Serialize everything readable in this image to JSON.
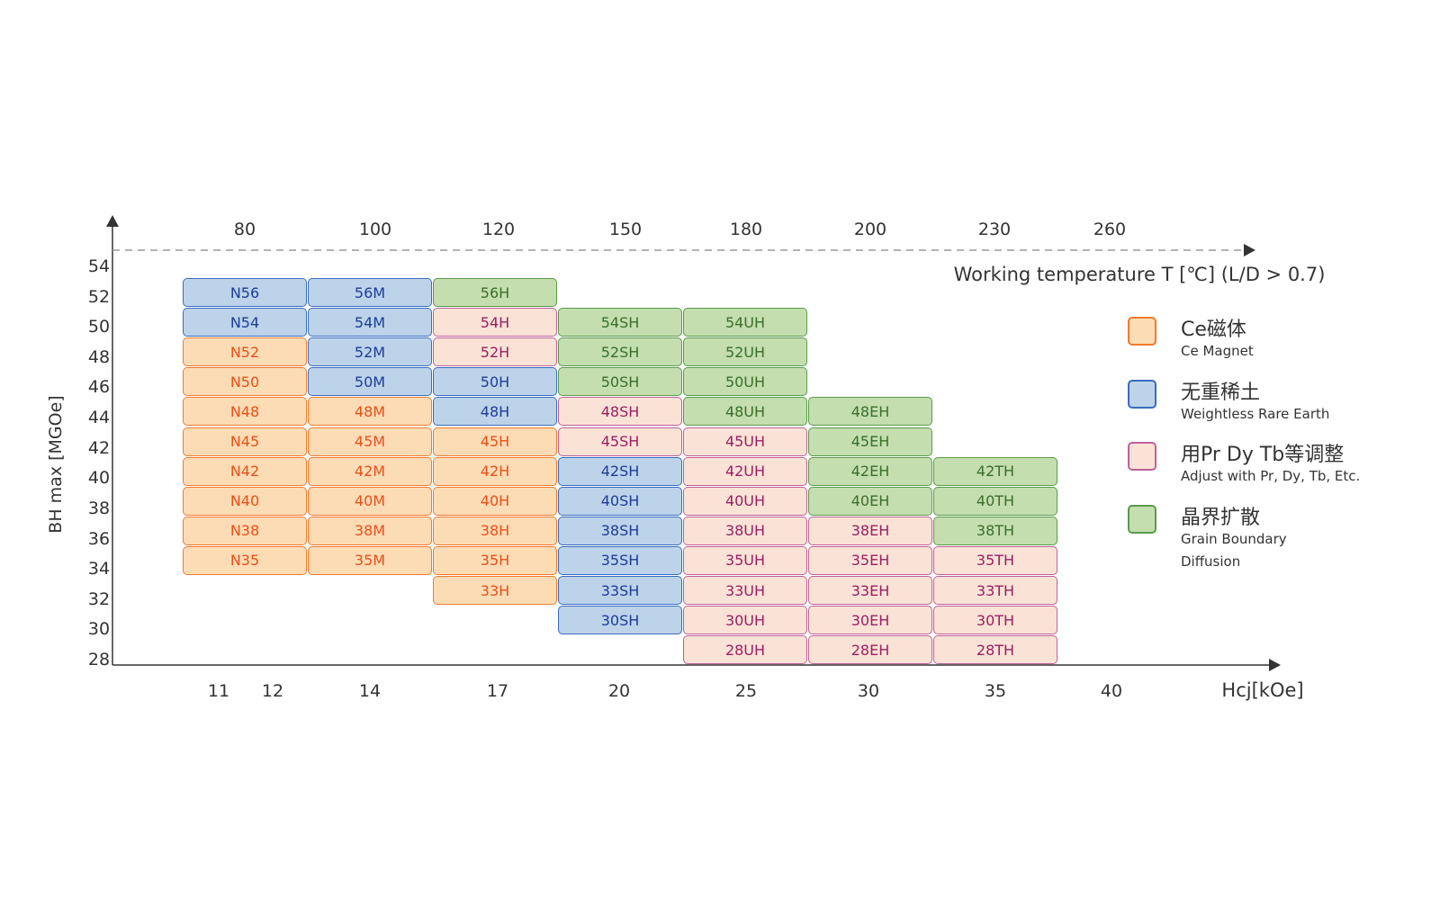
{
  "chart_data": {
    "type": "table",
    "ylabel": "BH max [MGOe]",
    "xlabel": "Hcj[kOe]",
    "top_axis_label": "Working temperature T [℃] (L/D > 0.7)",
    "y_ticks": [
      "54",
      "52",
      "50",
      "48",
      "46",
      "44",
      "42",
      "40",
      "38",
      "36",
      "34",
      "32",
      "30",
      "28"
    ],
    "x_ticks": [
      "11",
      "12",
      "14",
      "17",
      "20",
      "25",
      "30",
      "35",
      "40"
    ],
    "top_ticks": [
      "80",
      "100",
      "120",
      "150",
      "180",
      "200",
      "230",
      "260"
    ],
    "grid": false,
    "legend_placement": "right",
    "categories": {
      "ce": {
        "title": "Ce磁体",
        "subtitle": "Ce Magnet",
        "fill": "#fbdcb5",
        "border": "#f07a30",
        "text": "#e8501a"
      },
      "weightless": {
        "title": "无重稀土",
        "subtitle": "Weightless Rare Earth",
        "fill": "#bcd3ea",
        "border": "#3a6cc0",
        "text": "#1e3c96"
      },
      "adjust": {
        "title": "用Pr Dy Tb等调整",
        "subtitle": "Adjust with Pr, Dy, Tb, Etc.",
        "fill": "#fae3d6",
        "border": "#c0609a",
        "text": "#9a1e64"
      },
      "gbd": {
        "title": "晶界扩散",
        "subtitle": "Grain Boundary",
        "subtitle2": "Diffusion",
        "fill": "#c4deb0",
        "border": "#5a9a4a",
        "text": "#3a6e2a"
      }
    },
    "legend_order": [
      "ce",
      "weightless",
      "adjust",
      "gbd"
    ],
    "row_grades": [
      "56",
      "54",
      "52",
      "50",
      "48",
      "45",
      "42",
      "40",
      "38",
      "35",
      "33",
      "30",
      "28"
    ],
    "columns": [
      {
        "suffix": "N",
        "cells": [
          [
            "N56",
            "weightless"
          ],
          [
            "N54",
            "weightless"
          ],
          [
            "N52",
            "ce"
          ],
          [
            "N50",
            "ce"
          ],
          [
            "N48",
            "ce"
          ],
          [
            "N45",
            "ce"
          ],
          [
            "N42",
            "ce"
          ],
          [
            "N40",
            "ce"
          ],
          [
            "N38",
            "ce"
          ],
          [
            "N35",
            "ce"
          ]
        ]
      },
      {
        "suffix": "M",
        "cells": [
          [
            "56M",
            "weightless"
          ],
          [
            "54M",
            "weightless"
          ],
          [
            "52M",
            "weightless"
          ],
          [
            "50M",
            "weightless"
          ],
          [
            "48M",
            "ce"
          ],
          [
            "45M",
            "ce"
          ],
          [
            "42M",
            "ce"
          ],
          [
            "40M",
            "ce"
          ],
          [
            "38M",
            "ce"
          ],
          [
            "35M",
            "ce"
          ]
        ]
      },
      {
        "suffix": "H",
        "cells": [
          [
            "56H",
            "gbd"
          ],
          [
            "54H",
            "adjust"
          ],
          [
            "52H",
            "adjust"
          ],
          [
            "50H",
            "weightless"
          ],
          [
            "48H",
            "weightless"
          ],
          [
            "45H",
            "ce"
          ],
          [
            "42H",
            "ce"
          ],
          [
            "40H",
            "ce"
          ],
          [
            "38H",
            "ce"
          ],
          [
            "35H",
            "ce"
          ],
          [
            "33H",
            "ce"
          ]
        ]
      },
      {
        "suffix": "SH",
        "cells": [
          [
            "54SH",
            "gbd"
          ],
          [
            "52SH",
            "gbd"
          ],
          [
            "50SH",
            "gbd"
          ],
          [
            "48SH",
            "adjust"
          ],
          [
            "45SH",
            "adjust"
          ],
          [
            "42SH",
            "weightless"
          ],
          [
            "40SH",
            "weightless"
          ],
          [
            "38SH",
            "weightless"
          ],
          [
            "35SH",
            "weightless"
          ],
          [
            "33SH",
            "weightless"
          ],
          [
            "30SH",
            "weightless"
          ]
        ]
      },
      {
        "suffix": "UH",
        "cells": [
          [
            "54UH",
            "gbd"
          ],
          [
            "52UH",
            "gbd"
          ],
          [
            "50UH",
            "gbd"
          ],
          [
            "48UH",
            "gbd"
          ],
          [
            "45UH",
            "adjust"
          ],
          [
            "42UH",
            "adjust"
          ],
          [
            "40UH",
            "adjust"
          ],
          [
            "38UH",
            "adjust"
          ],
          [
            "35UH",
            "adjust"
          ],
          [
            "33UH",
            "adjust"
          ],
          [
            "30UH",
            "adjust"
          ],
          [
            "28UH",
            "adjust"
          ]
        ]
      },
      {
        "suffix": "EH",
        "cells": [
          [
            "48EH",
            "gbd"
          ],
          [
            "45EH",
            "gbd"
          ],
          [
            "42EH",
            "gbd"
          ],
          [
            "40EH",
            "gbd"
          ],
          [
            "38EH",
            "adjust"
          ],
          [
            "35EH",
            "adjust"
          ],
          [
            "33EH",
            "adjust"
          ],
          [
            "30EH",
            "adjust"
          ],
          [
            "28EH",
            "adjust"
          ]
        ]
      },
      {
        "suffix": "TH",
        "cells": [
          [
            "42TH",
            "gbd"
          ],
          [
            "40TH",
            "gbd"
          ],
          [
            "38TH",
            "gbd"
          ],
          [
            "35TH",
            "adjust"
          ],
          [
            "33TH",
            "adjust"
          ],
          [
            "30TH",
            "adjust"
          ],
          [
            "28TH",
            "adjust"
          ]
        ]
      }
    ],
    "axis_color": "#333333",
    "dashed_color": "#999999"
  }
}
